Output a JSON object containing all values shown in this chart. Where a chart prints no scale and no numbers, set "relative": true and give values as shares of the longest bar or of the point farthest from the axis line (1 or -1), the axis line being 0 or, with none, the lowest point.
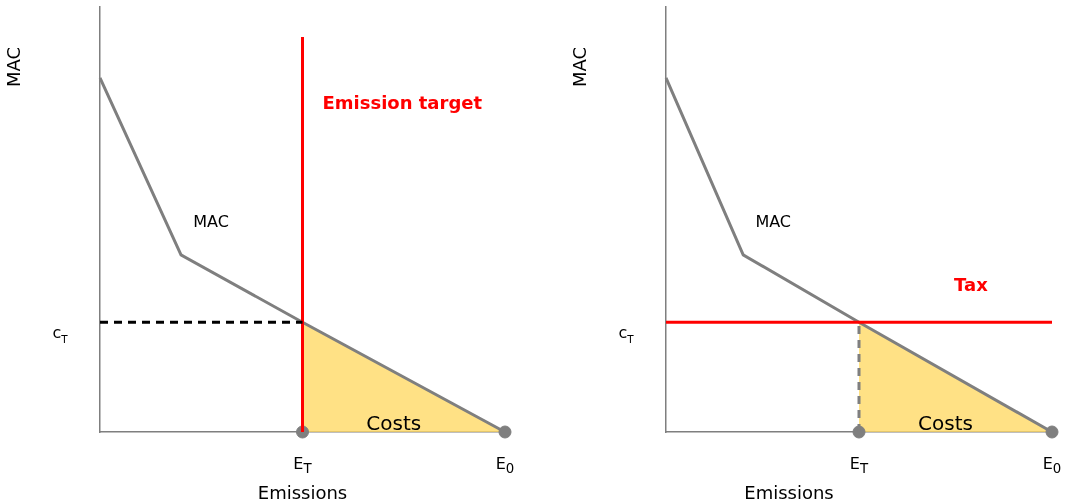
{
  "chart_data": [
    {
      "type": "line",
      "xlabel": "Emissions",
      "ylabel": "MAC",
      "relative": true,
      "grid": false,
      "legend": false,
      "categories": [
        null,
        null,
        null,
        null,
        null,
        "E$_{T}$",
        null,
        null,
        null,
        null,
        "E$_{0}$"
      ],
      "series": [
        {
          "color": "#7f7f7f",
          "values": [
            1,
            null,
            0.5,
            null,
            null,
            0.31,
            null,
            null,
            null,
            null,
            0
          ]
        },
        {
          "type": "area",
          "color": "#ffd966",
          "values": [
            null,
            null,
            null,
            null,
            null,
            0.31,
            null,
            null,
            null,
            null,
            0
          ]
        },
        {
          "type": "scatter",
          "color": "#7f7f7f",
          "values": [
            null,
            null,
            null,
            null,
            null,
            0,
            null,
            null,
            null,
            null,
            0
          ]
        }
      ],
      "ref_lines": [
        {
          "axis": "x",
          "value": "E$_{T}$",
          "label": "Emission target",
          "color": "#ff0000"
        },
        {
          "axis": "y",
          "value": 0.31,
          "color": "#000000",
          "line_style": "dashed"
        }
      ],
      "annotations": [
        "MAC",
        "c$_{T}$",
        "Costs"
      ]
    },
    {
      "type": "line",
      "xlabel": "Emissions",
      "ylabel": "MAC",
      "relative": true,
      "grid": false,
      "legend": false,
      "categories": [
        null,
        null,
        null,
        null,
        null,
        "E$_{T}$",
        null,
        null,
        null,
        null,
        "E$_{0}$"
      ],
      "series": [
        {
          "color": "#7f7f7f",
          "values": [
            1,
            null,
            0.5,
            null,
            null,
            0.31,
            null,
            null,
            null,
            null,
            0
          ]
        },
        {
          "type": "area",
          "color": "#ffd966",
          "values": [
            null,
            null,
            null,
            null,
            null,
            0.31,
            null,
            null,
            null,
            null,
            0
          ]
        },
        {
          "type": "scatter",
          "color": "#7f7f7f",
          "values": [
            null,
            null,
            null,
            null,
            null,
            0,
            null,
            null,
            null,
            null,
            0
          ]
        }
      ],
      "ref_lines": [
        {
          "axis": "y",
          "value": 0.31,
          "label": "Tax",
          "color": "#ff0000"
        },
        {
          "axis": "x",
          "value": "E$_{T}$",
          "color": "#7f7f7f",
          "line_style": "dashed"
        }
      ],
      "annotations": [
        "MAC",
        "c$_{T}$",
        "Costs"
      ]
    }
  ]
}
